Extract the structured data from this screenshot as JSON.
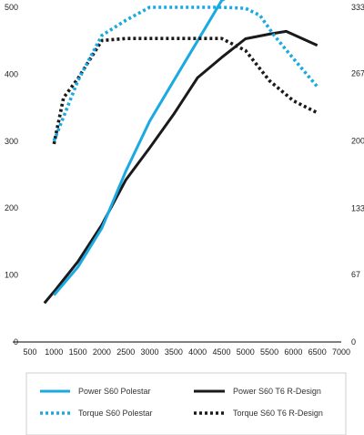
{
  "chart_data": {
    "type": "line",
    "x": [
      800,
      1000,
      1500,
      2000,
      2500,
      3000,
      3500,
      4000,
      4500,
      5000,
      5500,
      6000,
      6500
    ],
    "xlim": [
      500,
      7000
    ],
    "x_ticks": [
      "500",
      "1000",
      "1500",
      "2000",
      "2500",
      "3000",
      "3500",
      "4000",
      "4500",
      "5000",
      "5500",
      "6000",
      "6500",
      "7000"
    ],
    "ylim_left": [
      0,
      500
    ],
    "left_ticks": [
      "0",
      "100",
      "200",
      "300",
      "400",
      "500"
    ],
    "ylim_right": [
      0,
      333
    ],
    "right_ticks": [
      "0",
      "67",
      "133",
      "200",
      "267",
      "333"
    ],
    "grid": false,
    "legend_position": "bottom",
    "series": [
      {
        "name": "Power S60 Polestar",
        "axis": "left",
        "style": "solid",
        "color": "#1ba9e1",
        "points": [
          [
            1000,
            70
          ],
          [
            1500,
            112
          ],
          [
            2000,
            170
          ],
          [
            2500,
            255
          ],
          [
            3000,
            330
          ],
          [
            3500,
            390
          ],
          [
            4000,
            450
          ],
          [
            4500,
            510
          ],
          [
            5000,
            530
          ],
          [
            5200,
            530
          ]
        ]
      },
      {
        "name": "Power S60 T6 R-Design",
        "axis": "left",
        "style": "solid",
        "color": "#1a1a1a",
        "points": [
          [
            800,
            58
          ],
          [
            1000,
            75
          ],
          [
            1500,
            120
          ],
          [
            2000,
            175
          ],
          [
            2500,
            242
          ],
          [
            3000,
            290
          ],
          [
            3500,
            340
          ],
          [
            4000,
            395
          ],
          [
            4500,
            425
          ],
          [
            5000,
            453
          ],
          [
            5500,
            460
          ],
          [
            5850,
            464
          ],
          [
            6500,
            443
          ]
        ]
      },
      {
        "name": "Torque S60 Polestar",
        "axis": "right",
        "style": "dotted",
        "color": "#1ba9e1",
        "points": [
          [
            1000,
            200
          ],
          [
            1500,
            260
          ],
          [
            2000,
            305
          ],
          [
            2500,
            320
          ],
          [
            3000,
            333
          ],
          [
            3500,
            333
          ],
          [
            4000,
            333
          ],
          [
            4500,
            333
          ],
          [
            5000,
            332
          ],
          [
            5300,
            325
          ],
          [
            5600,
            305
          ],
          [
            6000,
            282
          ],
          [
            6500,
            254
          ]
        ]
      },
      {
        "name": "Torque S60 T6 R-Design",
        "axis": "right",
        "style": "dotted",
        "color": "#1a1a1a",
        "points": [
          [
            1000,
            197
          ],
          [
            1200,
            243
          ],
          [
            1500,
            262
          ],
          [
            2000,
            300
          ],
          [
            2500,
            302
          ],
          [
            3000,
            302
          ],
          [
            3500,
            302
          ],
          [
            4000,
            302
          ],
          [
            4500,
            302
          ],
          [
            5000,
            290
          ],
          [
            5500,
            260
          ],
          [
            6000,
            240
          ],
          [
            6500,
            228
          ]
        ]
      }
    ]
  },
  "legend": {
    "items": [
      {
        "label": "Power S60 Polestar",
        "color": "#1ba9e1",
        "style": "solid"
      },
      {
        "label": "Power S60 T6 R-Design",
        "color": "#1a1a1a",
        "style": "solid"
      },
      {
        "label": "Torque S60 Polestar",
        "color": "#1ba9e1",
        "style": "dotted"
      },
      {
        "label": "Torque S60 T6 R-Design",
        "color": "#1a1a1a",
        "style": "dotted"
      }
    ]
  }
}
